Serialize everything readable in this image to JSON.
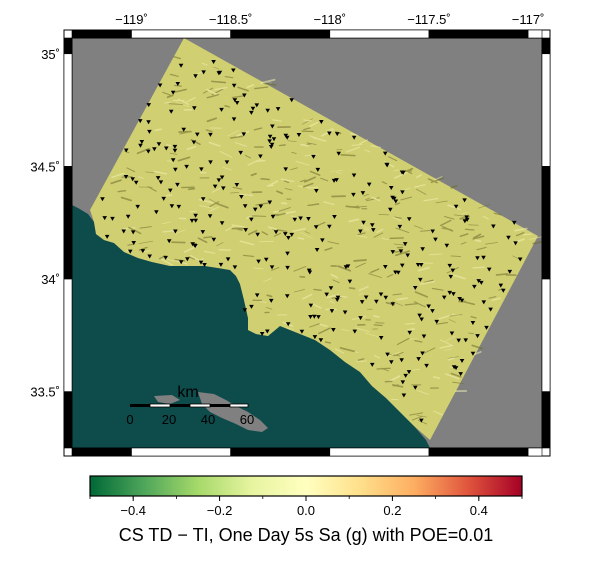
{
  "map": {
    "x_ticks": [
      {
        "lon": -119.0,
        "label": "−119˚"
      },
      {
        "lon": -118.5,
        "label": "−118.5˚"
      },
      {
        "lon": -118.0,
        "label": "−118˚"
      },
      {
        "lon": -117.5,
        "label": "−117.5˚"
      },
      {
        "lon": -117.0,
        "label": "−117˚"
      }
    ],
    "y_ticks": [
      {
        "lat": 35.0,
        "label": "35˚"
      },
      {
        "lat": 34.5,
        "label": "34.5˚"
      },
      {
        "lat": 34.0,
        "label": "34˚"
      },
      {
        "lat": 33.5,
        "label": "33.5˚"
      }
    ],
    "lon_range": [
      -119.3,
      -116.93
    ],
    "lat_range": [
      33.25,
      35.07
    ],
    "colors": {
      "land_gray": "#808080",
      "ocean": "#0e4b4b",
      "hazard_fill": "#d0cf72",
      "station": "#000000"
    },
    "station_symbol": "inverted-triangle"
  },
  "scale_bar": {
    "title": "km",
    "labels": [
      "0",
      "20",
      "40",
      "60"
    ]
  },
  "colorbar": {
    "tick_values": [
      -0.4,
      -0.2,
      0.0,
      0.2,
      0.4
    ],
    "tick_labels": [
      "−0.4",
      "−0.2",
      "0.0",
      "0.2",
      "0.4"
    ],
    "range": [
      -0.5,
      0.5
    ],
    "title": "CS TD − TI, One Day 5s Sa (g) with POE=0.01",
    "colors": [
      "#006837",
      "#4ea65a",
      "#a6d96a",
      "#e7f4a0",
      "#ffffbf",
      "#fee08b",
      "#fdae61",
      "#e0553d",
      "#a50026"
    ]
  }
}
